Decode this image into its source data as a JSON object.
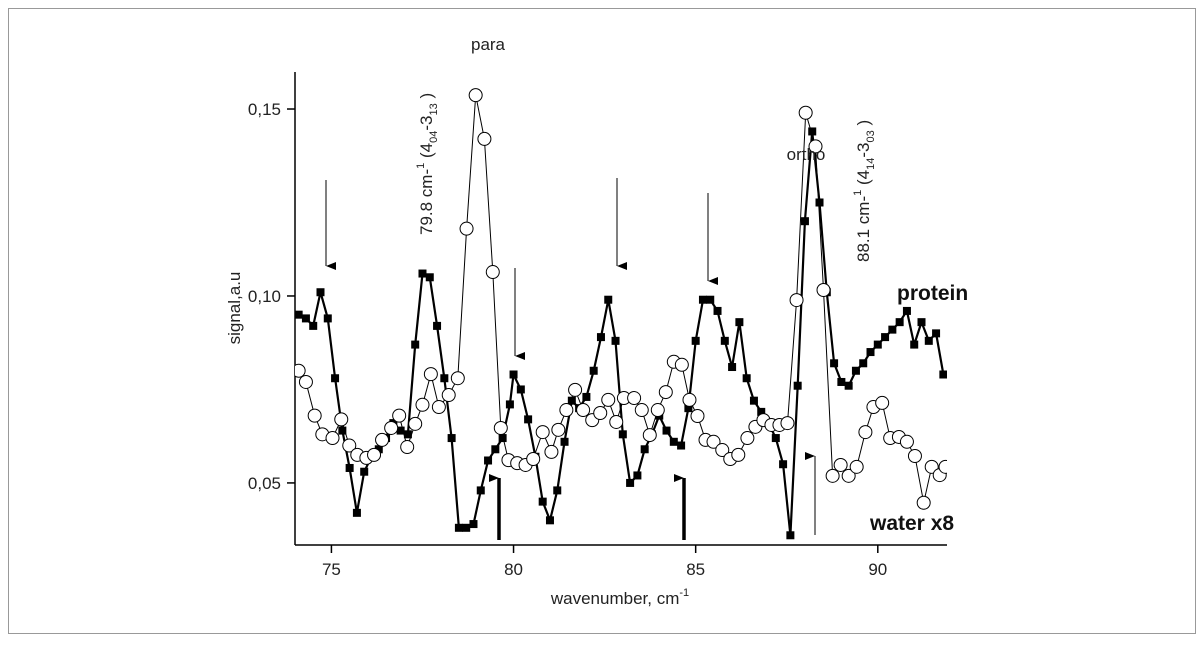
{
  "chart_data": {
    "type": "line",
    "x_label": "wavenumber, cm",
    "x_label_sup": "-1",
    "y_label": "signal,a.u",
    "xlim": [
      74,
      91.9
    ],
    "ylim": [
      0.0334,
      0.1599
    ],
    "xticks": [
      75,
      80,
      85,
      90
    ],
    "yticks": [
      {
        "value": 0.05,
        "label": "0,05"
      },
      {
        "value": 0.1,
        "label": "0,10"
      },
      {
        "value": 0.15,
        "label": "0,15"
      }
    ],
    "annotations": {
      "para": "para",
      "ortho": "ortho",
      "left_line": [
        "79.8 cm-",
        "1",
        " (4",
        "04",
        "-3",
        "13",
        " )"
      ],
      "right_line": [
        "88.1 cm-",
        "1",
        " (4",
        "14",
        "-3",
        "03",
        " )"
      ],
      "protein": "protein",
      "water": "water x8"
    },
    "series": [
      {
        "name": "protein",
        "color": "#000000",
        "marker": "square",
        "x": [
          74.1,
          74.3,
          74.5,
          74.7,
          74.9,
          75.1,
          75.3,
          75.5,
          75.7,
          75.9,
          76.1,
          76.3,
          76.5,
          76.7,
          76.9,
          77.1,
          77.3,
          77.5,
          77.7,
          77.9,
          78.1,
          78.3,
          78.5,
          78.7,
          78.9,
          79.1,
          79.3,
          79.5,
          79.7,
          79.9,
          80.0,
          80.2,
          80.4,
          80.6,
          80.8,
          81.0,
          81.2,
          81.4,
          81.6,
          81.8,
          82.0,
          82.2,
          82.4,
          82.6,
          82.8,
          83.0,
          83.2,
          83.4,
          83.6,
          83.8,
          84.0,
          84.2,
          84.4,
          84.6,
          84.8,
          85.0,
          85.2,
          85.4,
          85.6,
          85.8,
          86.0,
          86.2,
          86.4,
          86.6,
          86.8,
          87.0,
          87.2,
          87.4,
          87.6,
          87.8,
          88.0,
          88.2,
          88.4,
          88.6,
          88.8,
          89.0,
          89.2,
          89.4,
          89.6,
          89.8,
          90.0,
          90.2,
          90.4,
          90.6,
          90.8,
          91.0,
          91.2,
          91.4,
          91.6,
          91.8
        ],
        "values": [
          0.095,
          0.094,
          0.092,
          0.101,
          0.094,
          0.078,
          0.064,
          0.054,
          0.042,
          0.053,
          0.057,
          0.059,
          0.062,
          0.066,
          0.064,
          0.063,
          0.087,
          0.106,
          0.105,
          0.092,
          0.078,
          0.062,
          0.038,
          0.038,
          0.039,
          0.048,
          0.056,
          0.059,
          0.062,
          0.071,
          0.079,
          0.075,
          0.067,
          0.057,
          0.045,
          0.04,
          0.048,
          0.061,
          0.072,
          0.07,
          0.073,
          0.08,
          0.089,
          0.099,
          0.088,
          0.063,
          0.05,
          0.052,
          0.059,
          0.063,
          0.068,
          0.064,
          0.061,
          0.06,
          0.07,
          0.088,
          0.099,
          0.099,
          0.096,
          0.088,
          0.081,
          0.093,
          0.078,
          0.072,
          0.069,
          0.066,
          0.062,
          0.055,
          0.036,
          0.076,
          0.12,
          0.144,
          0.125,
          0.101,
          0.082,
          0.077,
          0.076,
          0.08,
          0.082,
          0.085,
          0.087,
          0.089,
          0.091,
          0.093,
          0.096,
          0.087,
          0.093,
          0.088,
          0.09,
          0.079
        ]
      },
      {
        "name": "water x8",
        "color": "#000000",
        "marker": "circle",
        "x": [
          74.1,
          74.3,
          74.54,
          74.75,
          75.03,
          75.27,
          75.49,
          75.71,
          75.96,
          76.17,
          76.39,
          76.64,
          76.86,
          77.08,
          77.3,
          77.5,
          77.73,
          77.95,
          78.22,
          78.47,
          78.71,
          78.96,
          79.2,
          79.43,
          79.65,
          79.86,
          80.1,
          80.33,
          80.54,
          80.8,
          81.04,
          81.23,
          81.45,
          81.69,
          81.91,
          82.16,
          82.38,
          82.6,
          82.82,
          83.03,
          83.31,
          83.52,
          83.74,
          83.96,
          84.18,
          84.4,
          84.62,
          84.83,
          85.05,
          85.27,
          85.49,
          85.73,
          85.95,
          86.17,
          86.42,
          86.64,
          86.86,
          87.08,
          87.3,
          87.52,
          87.77,
          88.02,
          88.29,
          88.51,
          88.76,
          88.98,
          89.2,
          89.42,
          89.66,
          89.88,
          90.12,
          90.34,
          90.58,
          90.8,
          91.02,
          91.26,
          91.48,
          91.7,
          91.86
        ],
        "values": [
          0.08,
          0.077,
          0.068,
          0.063,
          0.062,
          0.067,
          0.06,
          0.0575,
          0.0567,
          0.0575,
          0.0615,
          0.0647,
          0.068,
          0.0596,
          0.0658,
          0.0709,
          0.0791,
          0.0703,
          0.0735,
          0.078,
          0.118,
          0.1537,
          0.142,
          0.1064,
          0.0647,
          0.0561,
          0.0553,
          0.0548,
          0.0564,
          0.0636,
          0.0583,
          0.0642,
          0.0695,
          0.0749,
          0.0695,
          0.0668,
          0.0687,
          0.0722,
          0.0663,
          0.0727,
          0.0727,
          0.0695,
          0.0628,
          0.0695,
          0.0743,
          0.0824,
          0.0816,
          0.0722,
          0.0679,
          0.0615,
          0.061,
          0.0588,
          0.0564,
          0.0575,
          0.062,
          0.065,
          0.0668,
          0.0655,
          0.0655,
          0.066,
          0.0989,
          0.149,
          0.14,
          0.1016,
          0.0519,
          0.0548,
          0.0519,
          0.0543,
          0.0636,
          0.0703,
          0.0714,
          0.062,
          0.0623,
          0.061,
          0.0572,
          0.0447,
          0.0543,
          0.0521,
          0.0543
        ]
      }
    ]
  }
}
